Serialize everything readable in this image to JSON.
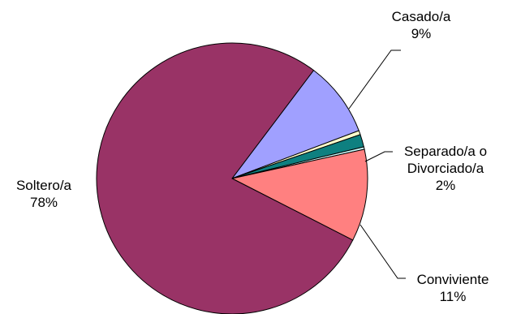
{
  "chart_data": {
    "type": "pie",
    "start_angle_deg": -53,
    "direction": "clockwise",
    "slices": [
      {
        "label": "Casado/a",
        "value": 9,
        "value_text": "9%",
        "color": "#A0A0FF"
      },
      {
        "label": "",
        "value": 0.5,
        "value_text": "",
        "color": "#FFFFCC"
      },
      {
        "label": "Separado/a o Divorciado/a",
        "value": 1.5,
        "value_text": "2%",
        "color": "#0E8080"
      },
      {
        "label": "",
        "value": 0.3,
        "value_text": "",
        "color": "#CCFFFF"
      },
      {
        "label": "Conviviente",
        "value": 11,
        "value_text": "11%",
        "color": "#FF8080"
      },
      {
        "label": "Soltero/a",
        "value": 78,
        "value_text": "78%",
        "color": "#993366"
      }
    ]
  },
  "labels": {
    "casado": {
      "name": "Casado/a",
      "pct": "9%"
    },
    "separado": {
      "line1": "Separado/a o",
      "line2": "Divorciado/a",
      "pct": "2%"
    },
    "conviviente": {
      "name": "Conviviente",
      "pct": "11%"
    },
    "soltero": {
      "name": "Soltero/a",
      "pct": "78%"
    }
  }
}
